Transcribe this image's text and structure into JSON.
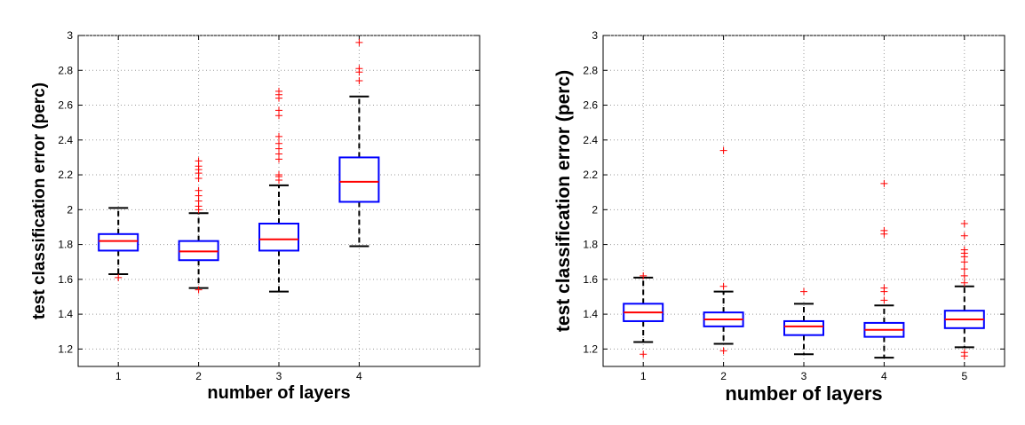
{
  "chart_data": [
    {
      "type": "box",
      "xlabel": "number of layers",
      "ylabel": "test classification error (perc)",
      "categories": [
        "1",
        "2",
        "3",
        "4"
      ],
      "xlim": [
        0.5,
        5.5
      ],
      "ylim": [
        1.1,
        3.0
      ],
      "yticks": [
        "1.2",
        "1.4",
        "1.6",
        "1.8",
        "2",
        "2.2",
        "2.4",
        "2.6",
        "2.8",
        "3"
      ],
      "grid": true,
      "boxes": [
        {
          "category": "1",
          "whisker_low": 1.63,
          "q1": 1.765,
          "median": 1.82,
          "q3": 1.86,
          "whisker_high": 2.01,
          "outliers": [
            1.61
          ]
        },
        {
          "category": "2",
          "whisker_low": 1.55,
          "q1": 1.71,
          "median": 1.76,
          "q3": 1.82,
          "whisker_high": 1.98,
          "outliers": [
            1.54,
            2.0,
            2.02,
            2.05,
            2.08,
            2.11,
            2.18,
            2.21,
            2.23,
            2.25,
            2.28
          ]
        },
        {
          "category": "3",
          "whisker_low": 1.53,
          "q1": 1.765,
          "median": 1.83,
          "q3": 1.92,
          "whisker_high": 2.14,
          "outliers": [
            2.17,
            2.19,
            2.2,
            2.29,
            2.32,
            2.35,
            2.38,
            2.42,
            2.54,
            2.57,
            2.64,
            2.66,
            2.68
          ]
        },
        {
          "category": "4",
          "whisker_low": 1.79,
          "q1": 2.045,
          "median": 2.16,
          "q3": 2.3,
          "whisker_high": 2.65,
          "outliers": [
            2.74,
            2.79,
            2.81,
            2.96
          ]
        }
      ]
    },
    {
      "type": "box",
      "xlabel": "number of layers",
      "ylabel": "test classification error (perc)",
      "categories": [
        "1",
        "2",
        "3",
        "4",
        "5"
      ],
      "xlim": [
        0.5,
        5.5
      ],
      "ylim": [
        1.1,
        3.0
      ],
      "yticks": [
        "1.2",
        "1.4",
        "1.6",
        "1.8",
        "2",
        "2.2",
        "2.4",
        "2.6",
        "2.8",
        "3"
      ],
      "grid": true,
      "boxes": [
        {
          "category": "1",
          "whisker_low": 1.24,
          "q1": 1.36,
          "median": 1.41,
          "q3": 1.46,
          "whisker_high": 1.61,
          "outliers": [
            1.17,
            1.62
          ]
        },
        {
          "category": "2",
          "whisker_low": 1.23,
          "q1": 1.33,
          "median": 1.37,
          "q3": 1.41,
          "whisker_high": 1.53,
          "outliers": [
            1.19,
            1.56,
            2.34
          ]
        },
        {
          "category": "3",
          "whisker_low": 1.17,
          "q1": 1.28,
          "median": 1.33,
          "q3": 1.36,
          "whisker_high": 1.46,
          "outliers": [
            1.53
          ]
        },
        {
          "category": "4",
          "whisker_low": 1.15,
          "q1": 1.27,
          "median": 1.31,
          "q3": 1.35,
          "whisker_high": 1.45,
          "outliers": [
            1.48,
            1.53,
            1.55,
            1.86,
            1.88,
            2.15
          ]
        },
        {
          "category": "5",
          "whisker_low": 1.21,
          "q1": 1.32,
          "median": 1.37,
          "q3": 1.42,
          "whisker_high": 1.56,
          "outliers": [
            1.16,
            1.18,
            1.58,
            1.62,
            1.66,
            1.7,
            1.73,
            1.75,
            1.77,
            1.85,
            1.92
          ]
        }
      ]
    }
  ],
  "colors": {
    "box": "#0000ff",
    "median": "#ff0000",
    "whisker": "#000000",
    "outlier": "#ff0000",
    "grid": "#9a9a9a"
  }
}
